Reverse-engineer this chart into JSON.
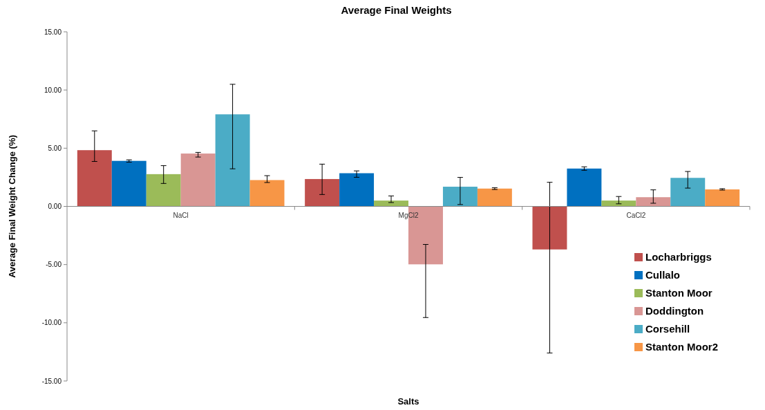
{
  "chart_data": {
    "type": "bar",
    "title": "Average Final Weights",
    "xlabel": "Salts",
    "ylabel": "Average Final Weight Change (%)",
    "categories": [
      "NaCl",
      "MgCl2",
      "CaCl2"
    ],
    "series": [
      {
        "name": "Locharbriggs",
        "color": "#c0504d",
        "values": [
          4.83,
          2.35,
          -3.7
        ],
        "errors": [
          [
            3.86,
            6.49
          ],
          [
            1.02,
            3.63
          ],
          [
            -12.6,
            2.07
          ]
        ]
      },
      {
        "name": "Cullalo",
        "color": "#0070c0",
        "values": [
          3.91,
          2.85,
          3.25
        ],
        "errors": [
          [
            3.8,
            4.0
          ],
          [
            2.5,
            3.05
          ],
          [
            3.1,
            3.4
          ]
        ]
      },
      {
        "name": "Stanton Moor",
        "color": "#9bbb59",
        "values": [
          2.77,
          0.5,
          0.5
        ],
        "errors": [
          [
            1.97,
            3.5
          ],
          [
            0.33,
            0.9
          ],
          [
            0.22,
            0.85
          ]
        ]
      },
      {
        "name": "Doddington",
        "color": "#d99694",
        "values": [
          4.54,
          -4.98,
          0.79
        ],
        "errors": [
          [
            4.24,
            4.64
          ],
          [
            -9.55,
            -3.27
          ],
          [
            0.27,
            1.42
          ]
        ]
      },
      {
        "name": "Corsehill",
        "color": "#4bacc6",
        "values": [
          7.91,
          1.69,
          2.45
        ],
        "errors": [
          [
            3.23,
            10.49
          ],
          [
            0.16,
            2.49
          ],
          [
            1.57,
            3.0
          ]
        ]
      },
      {
        "name": "Stanton Moor2",
        "color": "#f79646",
        "values": [
          2.26,
          1.53,
          1.46
        ],
        "errors": [
          [
            2.05,
            2.64
          ],
          [
            1.45,
            1.6
          ],
          [
            1.4,
            1.52
          ]
        ]
      }
    ],
    "ylim": [
      -15,
      15
    ],
    "yticks": [
      {
        "value": -15,
        "label": "-15.00"
      },
      {
        "value": -10,
        "label": "-10.00"
      },
      {
        "value": -5,
        "label": "-5.00"
      },
      {
        "value": 0,
        "label": "0.00"
      },
      {
        "value": 5,
        "label": "5.00"
      },
      {
        "value": 10,
        "label": "10.00"
      },
      {
        "value": 15,
        "label": "15.00"
      }
    ],
    "legend": "right"
  }
}
